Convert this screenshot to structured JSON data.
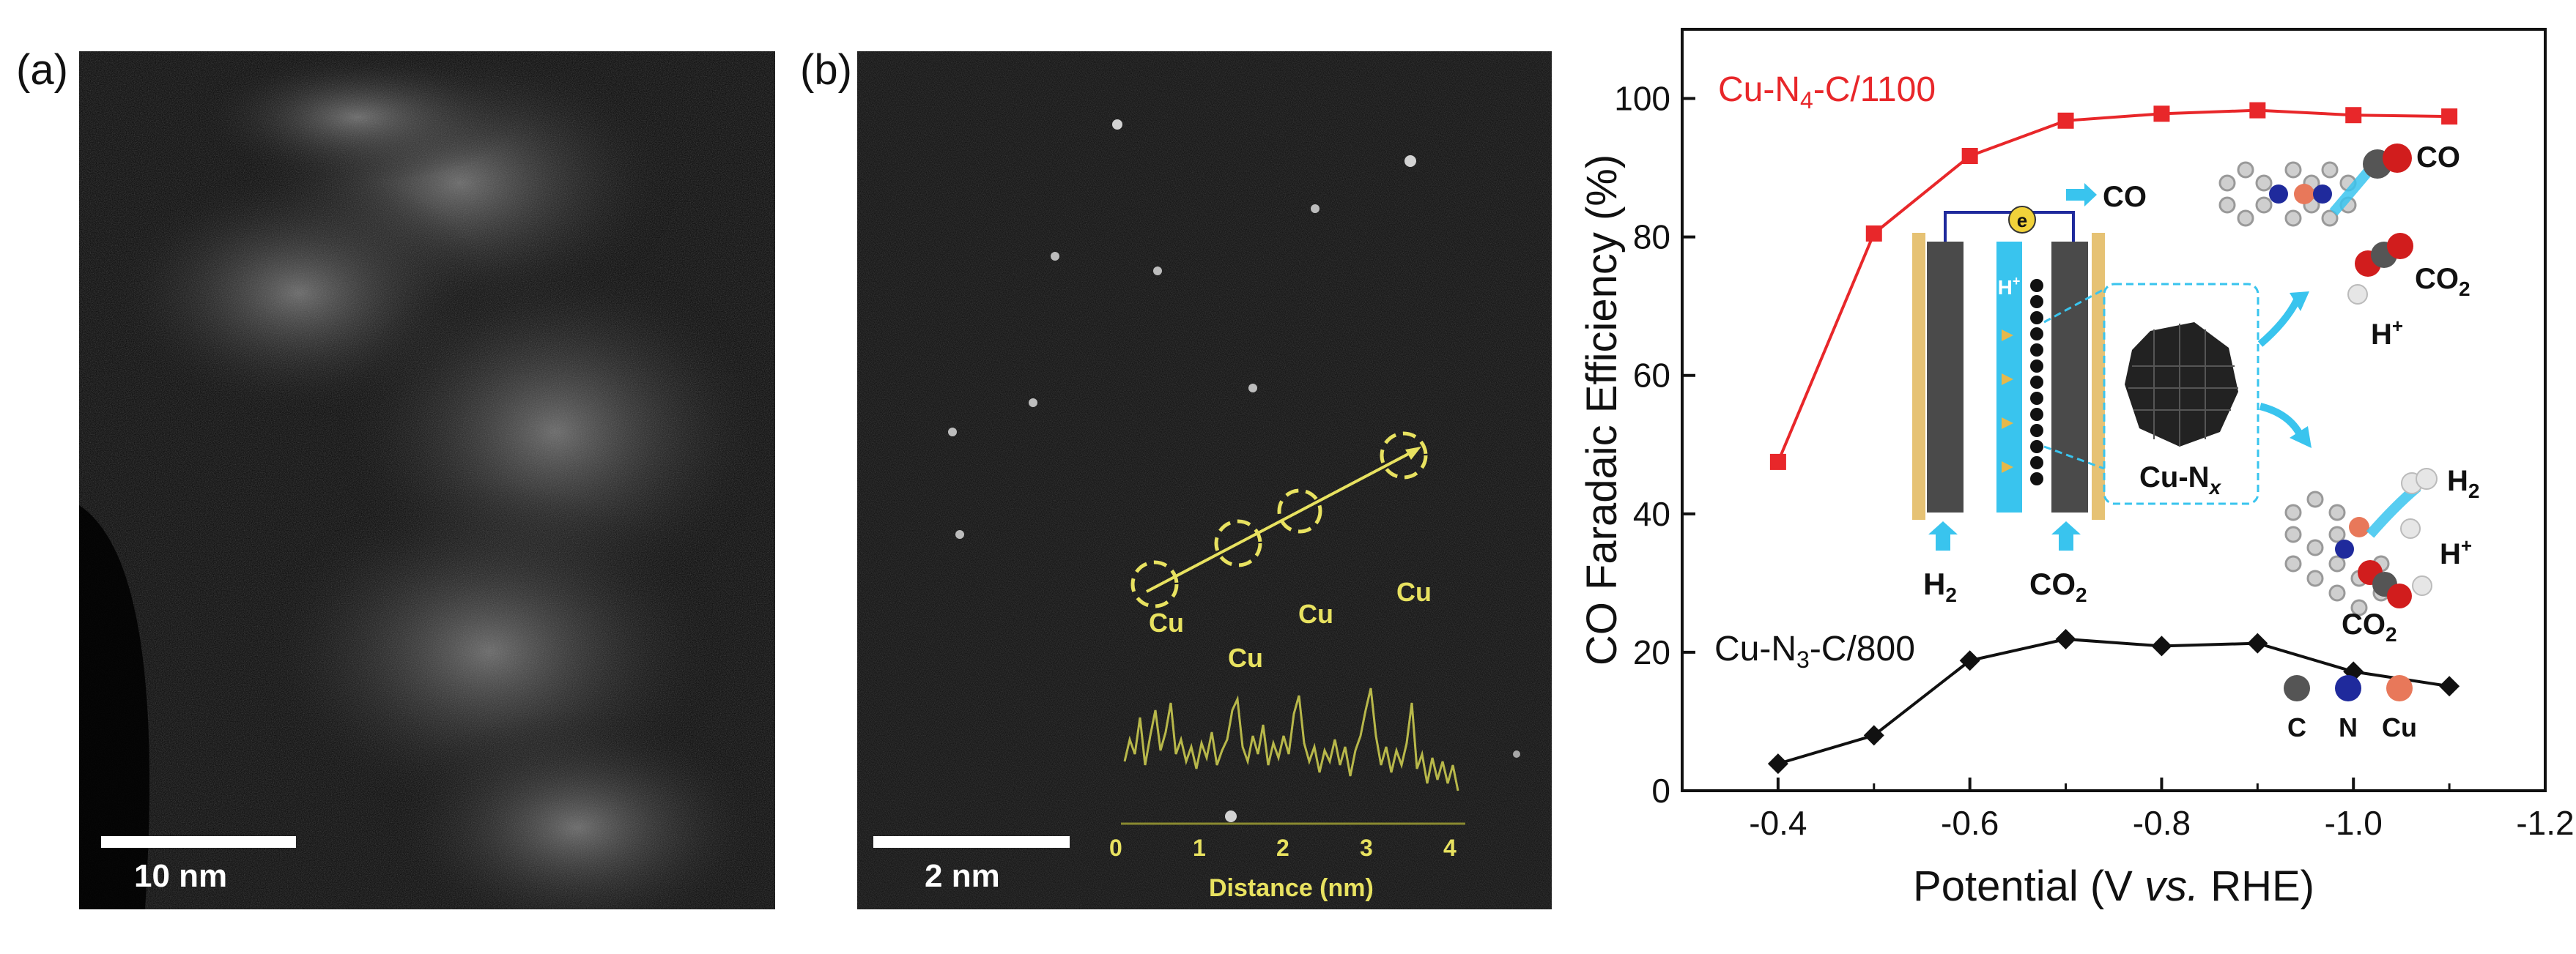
{
  "panel_a": {
    "label": "(a)",
    "scale_bar_text": "10 nm"
  },
  "panel_b": {
    "label": "(b)",
    "scale_bar_text": "2 nm",
    "profile_peak_labels": [
      "Cu",
      "Cu",
      "Cu",
      "Cu"
    ],
    "profile_xlabel": "Distance (nm)",
    "profile_ticks": [
      "0",
      "1",
      "2",
      "3",
      "4"
    ]
  },
  "chart_data": {
    "type": "line",
    "ylabel": "CO Faradaic Efficiency (%)",
    "xlabel_prefix": "Potential (V ",
    "xlabel_italic": "vs.",
    "xlabel_suffix": " RHE)",
    "x": [
      -0.4,
      -0.5,
      -0.6,
      -0.7,
      -0.8,
      -0.9,
      -1.0,
      -1.1
    ],
    "xlim": [
      -0.3,
      -1.2
    ],
    "ylim": [
      0,
      110
    ],
    "xticks": [
      "-0.4",
      "-0.6",
      "-0.8",
      "-1.0",
      "-1.2"
    ],
    "xtick_values": [
      -0.4,
      -0.6,
      -0.8,
      -1.0,
      -1.2
    ],
    "yticks": [
      "0",
      "20",
      "40",
      "60",
      "80",
      "100"
    ],
    "ytick_values": [
      0,
      20,
      40,
      60,
      80,
      100
    ],
    "series": [
      {
        "name_base": "Cu-N",
        "name_sub": "4",
        "name_rest": "-C/1100",
        "color": "#e8272a",
        "marker": "square",
        "values": [
          47.5,
          80.5,
          91.7,
          96.8,
          97.8,
          98.3,
          97.6,
          97.4
        ]
      },
      {
        "name_base": "Cu-N",
        "name_sub": "3",
        "name_rest": "-C/800",
        "color": "#111111",
        "marker": "diamond",
        "values": [
          3.9,
          8.0,
          18.8,
          21.9,
          20.9,
          21.3,
          17.2,
          15.1
        ]
      }
    ],
    "schematic": {
      "co_top": "CO",
      "h2_base": "H",
      "h2_sub": "2",
      "co2_base": "CO",
      "co2_sub": "2",
      "electron": "e",
      "proton": "H",
      "cluster_label_base": "Cu-N",
      "cluster_label_sub": "x",
      "upper_mol_co": "CO",
      "upper_mol_co2_base": "CO",
      "upper_mol_co2_sub": "2",
      "upper_mol_h": "H",
      "lower_mol_h2_base": "H",
      "lower_mol_h2_sub": "2",
      "lower_mol_h": "H",
      "lower_mol_co2_base": "CO",
      "lower_mol_co2_sub": "2",
      "atom_legend": [
        {
          "label": "C",
          "color": "#555555"
        },
        {
          "label": "N",
          "color": "#1f2a9c"
        },
        {
          "label": "Cu",
          "color": "#e8785a"
        }
      ]
    }
  }
}
